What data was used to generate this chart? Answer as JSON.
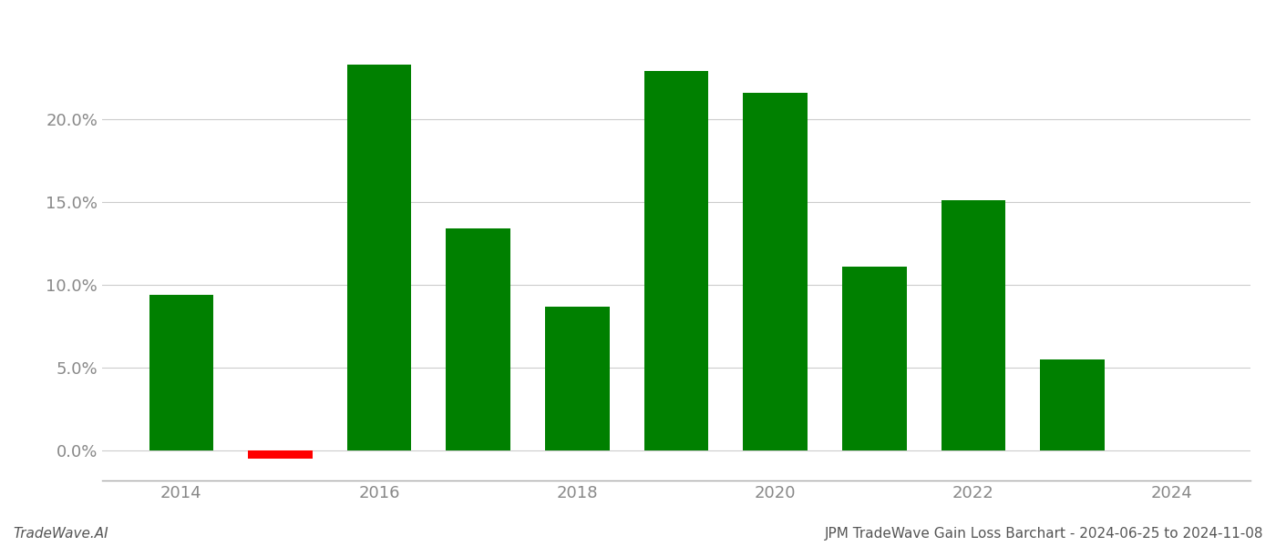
{
  "years": [
    2014,
    2015,
    2016,
    2017,
    2018,
    2019,
    2020,
    2021,
    2022,
    2023
  ],
  "values": [
    0.094,
    -0.005,
    0.233,
    0.134,
    0.087,
    0.229,
    0.216,
    0.111,
    0.151,
    0.055
  ],
  "colors": [
    "#008000",
    "#ff0000",
    "#008000",
    "#008000",
    "#008000",
    "#008000",
    "#008000",
    "#008000",
    "#008000",
    "#008000"
  ],
  "footer_left": "TradeWave.AI",
  "footer_right": "JPM TradeWave Gain Loss Barchart - 2024-06-25 to 2024-11-08",
  "ytick_values": [
    0.0,
    0.05,
    0.1,
    0.15,
    0.2
  ],
  "xtick_values": [
    2014,
    2016,
    2018,
    2020,
    2022,
    2024
  ],
  "xlim": [
    2013.2,
    2024.8
  ],
  "ylim": [
    -0.018,
    0.262
  ],
  "background_color": "#ffffff",
  "bar_width": 0.65,
  "grid_color": "#cccccc",
  "axis_color": "#aaaaaa",
  "tick_color": "#888888",
  "footer_fontsize": 11,
  "tick_fontsize": 13
}
